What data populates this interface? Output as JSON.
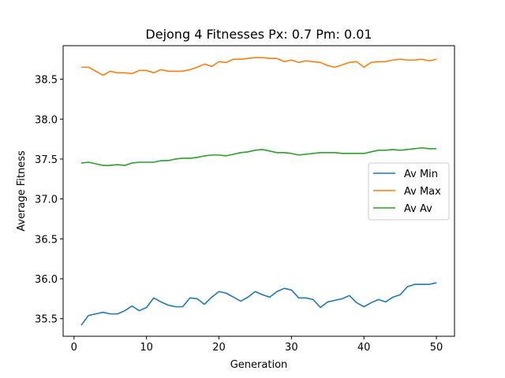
{
  "chart_data": {
    "type": "line",
    "title": "Dejong 4 Fitnesses Px: 0.7 Pm: 0.01",
    "xlabel": "Generation",
    "ylabel": "Average Fitness",
    "xlim": [
      -1.5,
      52.5
    ],
    "ylim": [
      35.28,
      38.92
    ],
    "xticks": [
      0,
      10,
      20,
      30,
      40,
      50
    ],
    "yticks": [
      35.5,
      36.0,
      36.5,
      37.0,
      37.5,
      38.0,
      38.5
    ],
    "grid": false,
    "legend_position": "center-right",
    "x": [
      1,
      2,
      3,
      4,
      5,
      6,
      7,
      8,
      9,
      10,
      11,
      12,
      13,
      14,
      15,
      16,
      17,
      18,
      19,
      20,
      21,
      22,
      23,
      24,
      25,
      26,
      27,
      28,
      29,
      30,
      31,
      32,
      33,
      34,
      35,
      36,
      37,
      38,
      39,
      40,
      41,
      42,
      43,
      44,
      45,
      46,
      47,
      48,
      49,
      50
    ],
    "series": [
      {
        "name": "Av Min",
        "color": "#1f77b4",
        "values": [
          35.42,
          35.54,
          35.56,
          35.58,
          35.56,
          35.56,
          35.6,
          35.66,
          35.6,
          35.64,
          35.76,
          35.71,
          35.67,
          35.65,
          35.65,
          35.76,
          35.75,
          35.68,
          35.77,
          35.84,
          35.82,
          35.77,
          35.72,
          35.77,
          35.84,
          35.8,
          35.77,
          35.84,
          35.88,
          35.86,
          35.76,
          35.76,
          35.74,
          35.64,
          35.71,
          35.73,
          35.75,
          35.79,
          35.7,
          35.65,
          35.7,
          35.74,
          35.71,
          35.77,
          35.8,
          35.9,
          35.93,
          35.93,
          35.93,
          35.95
        ]
      },
      {
        "name": "Av Max",
        "color": "#ff7f0e",
        "values": [
          38.65,
          38.65,
          38.6,
          38.55,
          38.6,
          38.58,
          38.58,
          38.57,
          38.61,
          38.61,
          38.58,
          38.62,
          38.6,
          38.6,
          38.6,
          38.62,
          38.65,
          38.69,
          38.66,
          38.72,
          38.71,
          38.75,
          38.75,
          38.76,
          38.77,
          38.77,
          38.76,
          38.76,
          38.72,
          38.74,
          38.71,
          38.73,
          38.72,
          38.71,
          38.67,
          38.65,
          38.68,
          38.71,
          38.72,
          38.65,
          38.71,
          38.72,
          38.72,
          38.74,
          38.75,
          38.74,
          38.74,
          38.75,
          38.73,
          38.75
        ]
      },
      {
        "name": "Av Av",
        "color": "#2ca02c",
        "values": [
          37.45,
          37.46,
          37.44,
          37.42,
          37.42,
          37.43,
          37.42,
          37.45,
          37.46,
          37.46,
          37.46,
          37.48,
          37.48,
          37.5,
          37.51,
          37.51,
          37.52,
          37.54,
          37.55,
          37.55,
          37.54,
          37.56,
          37.58,
          37.59,
          37.61,
          37.62,
          37.6,
          37.58,
          37.58,
          37.57,
          37.55,
          37.56,
          37.57,
          37.58,
          37.58,
          37.58,
          37.57,
          37.57,
          37.57,
          37.57,
          37.59,
          37.61,
          37.61,
          37.62,
          37.61,
          37.62,
          37.63,
          37.64,
          37.63,
          37.63
        ]
      }
    ]
  }
}
